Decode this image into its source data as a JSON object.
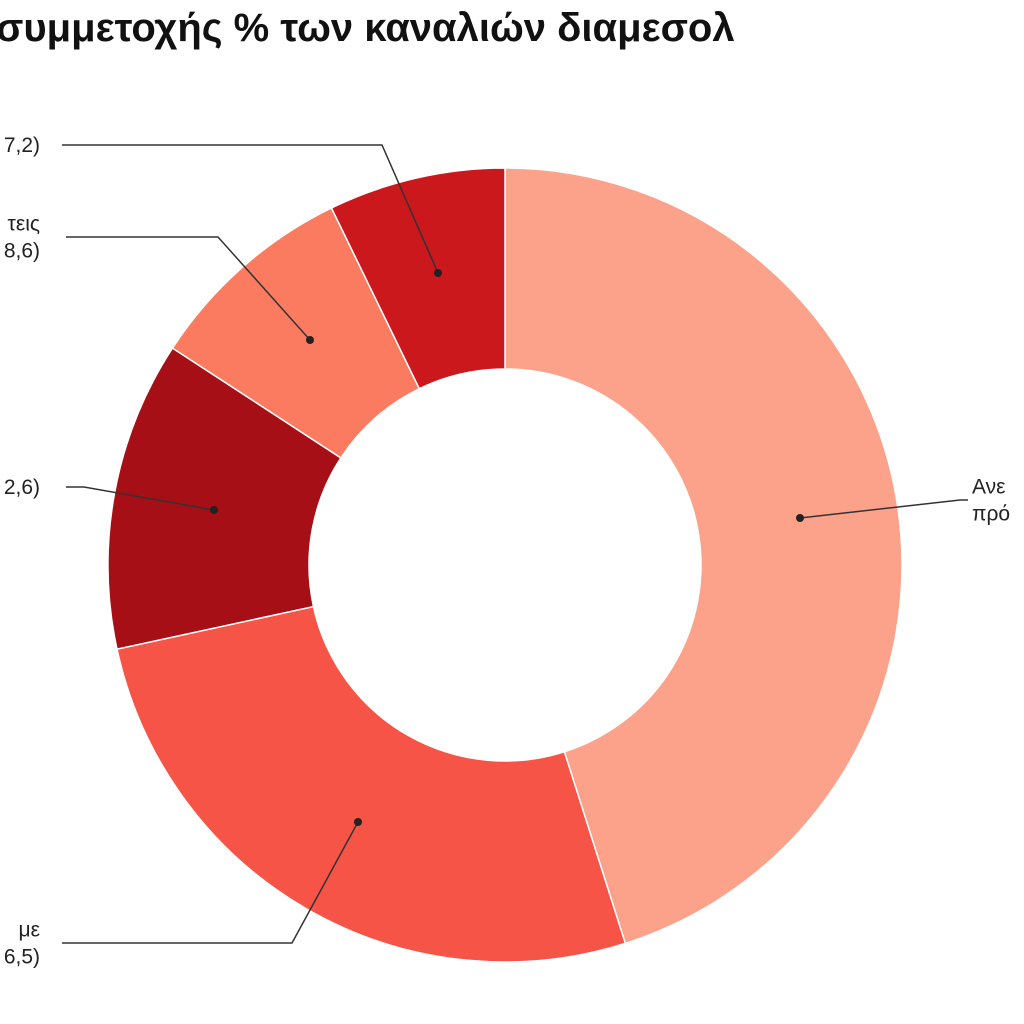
{
  "chart_data": {
    "type": "donut",
    "title": "συμμετοχής % των καναλιών διαμεσολ",
    "series": [
      {
        "label_lines": [
          "Ανε",
          "πρό"
        ],
        "value": 45.1,
        "color": "#fca28a"
      },
      {
        "label_lines": [
          "με",
          "6,5)"
        ],
        "value": 26.5,
        "color": "#f65447"
      },
      {
        "label_lines": [
          "2,6)"
        ],
        "value": 12.6,
        "color": "#a50f15"
      },
      {
        "label_lines": [
          "τεις",
          "8,6)"
        ],
        "value": 8.6,
        "color": "#fb7b61"
      },
      {
        "label_lines": [
          "7,2)"
        ],
        "value": 7.2,
        "color": "#cb181d"
      }
    ],
    "legend": "none"
  }
}
